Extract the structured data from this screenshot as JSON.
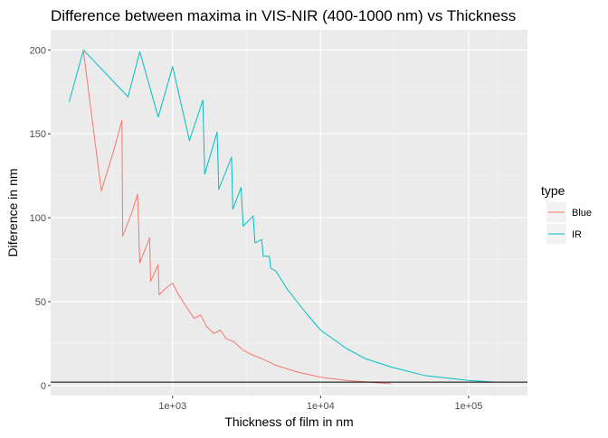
{
  "chart_data": {
    "type": "line",
    "title": "Difference between maxima in VIS-NIR (400-1000 nm) vs Thickness",
    "xlabel": "Thickness of film in nm",
    "ylabel": "Diference in nm",
    "x_scale": "log10",
    "xlim": [
      150,
      250000
    ],
    "ylim": [
      -6,
      212
    ],
    "x_ticks": [
      {
        "value": 1000,
        "label": "1e+03"
      },
      {
        "value": 10000,
        "label": "1e+04"
      },
      {
        "value": 100000,
        "label": "1e+05"
      }
    ],
    "y_ticks": [
      {
        "value": 0,
        "label": "0"
      },
      {
        "value": 50,
        "label": "50"
      },
      {
        "value": 100,
        "label": "100"
      },
      {
        "value": 150,
        "label": "150"
      },
      {
        "value": 200,
        "label": "200"
      }
    ],
    "grid": true,
    "hline": 2,
    "legend": {
      "title": "type",
      "position": "right"
    },
    "series": [
      {
        "name": "Blue",
        "color": "#F8766D",
        "points": [
          [
            250,
            199
          ],
          [
            330,
            116
          ],
          [
            400,
            140
          ],
          [
            455,
            158
          ],
          [
            460,
            89
          ],
          [
            530,
            103
          ],
          [
            580,
            114
          ],
          [
            600,
            73
          ],
          [
            700,
            88
          ],
          [
            710,
            62
          ],
          [
            800,
            72
          ],
          [
            810,
            54
          ],
          [
            900,
            58
          ],
          [
            1000,
            61
          ],
          [
            1100,
            54
          ],
          [
            1300,
            44
          ],
          [
            1400,
            40
          ],
          [
            1550,
            42
          ],
          [
            1700,
            35
          ],
          [
            1900,
            31
          ],
          [
            2100,
            33
          ],
          [
            2300,
            28
          ],
          [
            2600,
            26
          ],
          [
            3000,
            21
          ],
          [
            3500,
            18
          ],
          [
            4000,
            16
          ],
          [
            5000,
            12
          ],
          [
            7000,
            8
          ],
          [
            10000,
            5
          ],
          [
            15000,
            3
          ],
          [
            30000,
            1
          ]
        ]
      },
      {
        "name": "IR",
        "color": "#00BFC4",
        "points": [
          [
            200,
            169
          ],
          [
            250,
            200
          ],
          [
            500,
            172
          ],
          [
            600,
            199
          ],
          [
            800,
            160
          ],
          [
            1000,
            190
          ],
          [
            1300,
            146
          ],
          [
            1600,
            170
          ],
          [
            1650,
            126
          ],
          [
            2000,
            151
          ],
          [
            2050,
            117
          ],
          [
            2500,
            136
          ],
          [
            2550,
            105
          ],
          [
            2900,
            118
          ],
          [
            3000,
            95
          ],
          [
            3500,
            101
          ],
          [
            3600,
            85
          ],
          [
            4000,
            87
          ],
          [
            4100,
            77
          ],
          [
            4500,
            77
          ],
          [
            4600,
            70
          ],
          [
            5000,
            68
          ],
          [
            6000,
            57
          ],
          [
            8000,
            43
          ],
          [
            10000,
            33
          ],
          [
            15000,
            22
          ],
          [
            20000,
            16
          ],
          [
            30000,
            11
          ],
          [
            50000,
            6
          ],
          [
            100000,
            3
          ],
          [
            150000,
            2
          ]
        ]
      }
    ]
  }
}
